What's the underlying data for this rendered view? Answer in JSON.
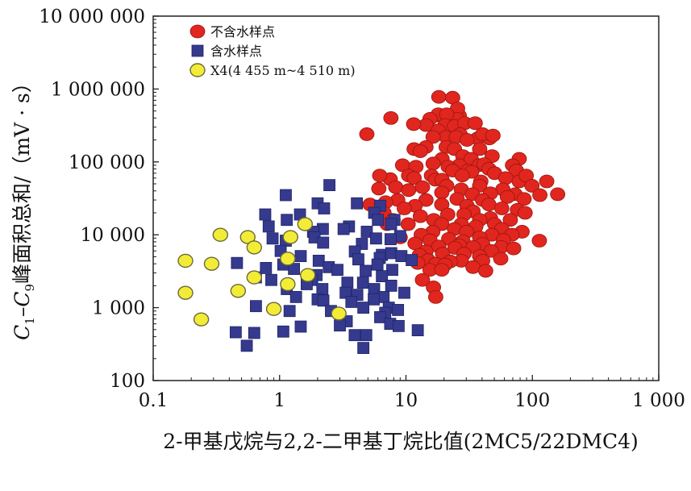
{
  "chart_data": {
    "type": "scatter",
    "x_scale": "log",
    "y_scale": "log",
    "xlim": [
      0.1,
      1000
    ],
    "ylim": [
      100,
      10000000
    ],
    "x_ticks": [
      "0.1",
      "1",
      "10",
      "100",
      "1 000"
    ],
    "y_ticks": [
      "10 000 000",
      "1 000 000",
      "100 000",
      "10 000",
      "1 000",
      "100"
    ],
    "xlabel": "2-甲基戊烷与2,2-二甲基丁烷比值(2MC5/22DMC4)",
    "ylabel_parts": {
      "c1": "C",
      "sub1": "1",
      "dash": "–C",
      "sub9": "9",
      "rest": "峰面积总和/（mV · s）"
    },
    "grid": false,
    "legend_position": "top-left",
    "legend": [
      {
        "label": "不含水样点",
        "marker": "circle",
        "color": "#e0261e"
      },
      {
        "label": "含水样点",
        "marker": "square",
        "color": "#353a8e"
      },
      {
        "label": "X4(4 455 m~4 510 m)",
        "marker": "circle",
        "color": "#f2ec37"
      }
    ],
    "series": [
      {
        "name": "不含水样点",
        "marker": "circle",
        "color": "#e0261e",
        "points": [
          [
            18.2,
            780000
          ],
          [
            18.4,
            430000
          ],
          [
            23.4,
            760000
          ],
          [
            7.6,
            400000
          ],
          [
            26.4,
            430000
          ],
          [
            25.6,
            540000
          ],
          [
            18.0,
            450000
          ],
          [
            15.5,
            390000
          ],
          [
            21.8,
            390000
          ],
          [
            22.4,
            390000
          ],
          [
            25.2,
            390000
          ],
          [
            21.0,
            450000
          ],
          [
            20.4,
            320000
          ],
          [
            24.2,
            310000
          ],
          [
            29.2,
            340000
          ],
          [
            35.3,
            340000
          ],
          [
            14.4,
            320000
          ],
          [
            11.5,
            330000
          ],
          [
            18.0,
            270000
          ],
          [
            20.8,
            220000
          ],
          [
            26.8,
            240000
          ],
          [
            36.8,
            210000
          ],
          [
            45.7,
            210000
          ],
          [
            25.0,
            220000
          ],
          [
            16.4,
            220000
          ],
          [
            40.4,
            240000
          ],
          [
            48.8,
            230000
          ],
          [
            30.4,
            200000
          ],
          [
            14.4,
            160000
          ],
          [
            4.9,
            240000
          ],
          [
            20.8,
            160000
          ],
          [
            24.2,
            150000
          ],
          [
            38.3,
            150000
          ],
          [
            11.6,
            150000
          ],
          [
            13.0,
            140000
          ],
          [
            19.3,
            110000
          ],
          [
            28.2,
            120000
          ],
          [
            32.8,
            110000
          ],
          [
            48.0,
            120000
          ],
          [
            78.7,
            110000
          ],
          [
            26.4,
            90000
          ],
          [
            16.4,
            95000
          ],
          [
            69.7,
            90000
          ],
          [
            37.9,
            90000
          ],
          [
            9.4,
            90000
          ],
          [
            21.6,
            86000
          ],
          [
            12.0,
            86000
          ],
          [
            41.5,
            93000
          ],
          [
            23.4,
            76000
          ],
          [
            31.0,
            76000
          ],
          [
            45.3,
            80000
          ],
          [
            74.8,
            76000
          ],
          [
            33.1,
            73000
          ],
          [
            50.3,
            70000
          ],
          [
            27.9,
            65000
          ],
          [
            15.9,
            65000
          ],
          [
            10.5,
            65000
          ],
          [
            11.6,
            60000
          ],
          [
            7.5,
            58000
          ],
          [
            6.2,
            65000
          ],
          [
            17.1,
            57000
          ],
          [
            19.3,
            57000
          ],
          [
            39.1,
            54000
          ],
          [
            61.6,
            60000
          ],
          [
            78.7,
            54000
          ],
          [
            89.4,
            65000
          ],
          [
            129.9,
            54000
          ],
          [
            99.2,
            47000
          ],
          [
            38.3,
            47000
          ],
          [
            21.0,
            47000
          ],
          [
            8.3,
            45000
          ],
          [
            13.5,
            45000
          ],
          [
            6.1,
            43000
          ],
          [
            27.4,
            42000
          ],
          [
            58.4,
            42000
          ],
          [
            10.5,
            41000
          ],
          [
            19.2,
            38000
          ],
          [
            158.6,
            36000
          ],
          [
            33.5,
            36000
          ],
          [
            46.6,
            37000
          ],
          [
            114.7,
            35000
          ],
          [
            73.1,
            36000
          ],
          [
            63.5,
            33000
          ],
          [
            25.4,
            31000
          ],
          [
            86.0,
            31000
          ],
          [
            8.6,
            30000
          ],
          [
            14.4,
            30000
          ],
          [
            40.4,
            30000
          ],
          [
            6.9,
            28000
          ],
          [
            30.4,
            25000
          ],
          [
            5.2,
            26000
          ],
          [
            19.2,
            26000
          ],
          [
            11.8,
            25000
          ],
          [
            45.3,
            26000
          ],
          [
            9.7,
            23000
          ],
          [
            57.3,
            23000
          ],
          [
            76.2,
            22000
          ],
          [
            33.9,
            21000
          ],
          [
            87.6,
            20000
          ],
          [
            28.8,
            19000
          ],
          [
            6.7,
            20000
          ],
          [
            21.4,
            19000
          ],
          [
            13.0,
            18000
          ],
          [
            46.6,
            17000
          ],
          [
            16.6,
            16000
          ],
          [
            7.9,
            16000
          ],
          [
            66.9,
            16000
          ],
          [
            38.3,
            16000
          ],
          [
            27.4,
            14000
          ],
          [
            19.2,
            14000
          ],
          [
            50.3,
            14000
          ],
          [
            10.4,
            14000
          ],
          [
            7.1,
            14000
          ],
          [
            35.7,
            13000
          ],
          [
            57.3,
            12000
          ],
          [
            24.2,
            12000
          ],
          [
            82.9,
            11000
          ],
          [
            16.3,
            11000
          ],
          [
            47.8,
            10000
          ],
          [
            13.2,
            10000
          ],
          [
            30.2,
            11000
          ],
          [
            69.0,
            10000
          ],
          [
            9.0,
            9200
          ],
          [
            38.3,
            9200
          ],
          [
            21.8,
            8800
          ],
          [
            59.0,
            8500
          ],
          [
            15.5,
            8400
          ],
          [
            28.2,
            8200
          ],
          [
            113.6,
            8300
          ],
          [
            11.8,
            7600
          ],
          [
            40.4,
            7500
          ],
          [
            26.4,
            7200
          ],
          [
            56.8,
            6800
          ],
          [
            18.2,
            6900
          ],
          [
            71.1,
            6500
          ],
          [
            34.0,
            6800
          ],
          [
            24.4,
            6600
          ],
          [
            47.4,
            6000
          ],
          [
            14.4,
            5900
          ],
          [
            28.8,
            5500
          ],
          [
            19.5,
            5500
          ],
          [
            12.8,
            5300
          ],
          [
            38.3,
            5100
          ],
          [
            56.2,
            4700
          ],
          [
            27.4,
            4400
          ],
          [
            40.4,
            4400
          ],
          [
            15.0,
            4500
          ],
          [
            22.4,
            4300
          ],
          [
            17.2,
            4000
          ],
          [
            12.4,
            4100
          ],
          [
            33.9,
            3600
          ],
          [
            20.4,
            3900
          ],
          [
            15.5,
            3300
          ],
          [
            19.2,
            3300
          ],
          [
            42.7,
            3200
          ],
          [
            13.5,
            2400
          ],
          [
            16.5,
            1900
          ],
          [
            17.2,
            1400
          ]
        ]
      },
      {
        "name": "含水样点",
        "marker": "square",
        "color": "#353a8e",
        "points": [
          [
            2.48,
            48000
          ],
          [
            1.12,
            35000
          ],
          [
            2.0,
            27000
          ],
          [
            4.09,
            27000
          ],
          [
            6.25,
            25000
          ],
          [
            0.77,
            19000
          ],
          [
            1.45,
            19000
          ],
          [
            2.25,
            23000
          ],
          [
            5.6,
            20000
          ],
          [
            1.14,
            16000
          ],
          [
            2.2,
            12000
          ],
          [
            6.0,
            16000
          ],
          [
            8.1,
            16000
          ],
          [
            0.82,
            13000
          ],
          [
            3.54,
            13000
          ],
          [
            1.84,
            11000
          ],
          [
            4.9,
            11000
          ],
          [
            7.62,
            14000
          ],
          [
            0.88,
            8900
          ],
          [
            1.12,
            8300
          ],
          [
            3.21,
            12000
          ],
          [
            9.0,
            9600
          ],
          [
            1.89,
            9200
          ],
          [
            5.8,
            8900
          ],
          [
            7.55,
            8700
          ],
          [
            2.21,
            7800
          ],
          [
            4.48,
            7500
          ],
          [
            6.45,
            5300
          ],
          [
            7.65,
            5600
          ],
          [
            1.02,
            6000
          ],
          [
            3.94,
            5900
          ],
          [
            1.47,
            5100
          ],
          [
            6.2,
            4800
          ],
          [
            9.2,
            5100
          ],
          [
            2.04,
            4400
          ],
          [
            4.2,
            4600
          ],
          [
            0.46,
            4100
          ],
          [
            1.07,
            3900
          ],
          [
            2.45,
            3600
          ],
          [
            5.95,
            3900
          ],
          [
            11.1,
            4500
          ],
          [
            0.78,
            3500
          ],
          [
            1.3,
            3400
          ],
          [
            2.87,
            3300
          ],
          [
            4.8,
            3200
          ],
          [
            7.79,
            3300
          ],
          [
            1.96,
            2800
          ],
          [
            0.65,
            2600
          ],
          [
            1.81,
            2400
          ],
          [
            6.45,
            2700
          ],
          [
            0.86,
            2400
          ],
          [
            3.44,
            2200
          ],
          [
            1.64,
            2100
          ],
          [
            4.57,
            2200
          ],
          [
            7.64,
            2000
          ],
          [
            1.14,
            1800
          ],
          [
            2.18,
            1800
          ],
          [
            5.6,
            1800
          ],
          [
            1.35,
            1400
          ],
          [
            3.33,
            1600
          ],
          [
            9.7,
            1600
          ],
          [
            4.12,
            1500
          ],
          [
            2.0,
            1300
          ],
          [
            6.65,
            1400
          ],
          [
            0.65,
            1050
          ],
          [
            2.22,
            1250
          ],
          [
            3.7,
            1200
          ],
          [
            5.56,
            1300
          ],
          [
            7.31,
            1000
          ],
          [
            1.2,
            900
          ],
          [
            2.55,
            900
          ],
          [
            4.6,
            1000
          ],
          [
            6.85,
            850
          ],
          [
            8.65,
            930
          ],
          [
            6.25,
            740
          ],
          [
            3.4,
            650
          ],
          [
            7.5,
            600
          ],
          [
            8.75,
            560
          ],
          [
            1.47,
            550
          ],
          [
            3.0,
            570
          ],
          [
            0.45,
            460
          ],
          [
            0.63,
            450
          ],
          [
            1.07,
            470
          ],
          [
            12.4,
            490
          ],
          [
            3.93,
            420
          ],
          [
            4.85,
            420
          ],
          [
            0.55,
            300
          ],
          [
            4.6,
            280
          ]
        ]
      },
      {
        "name": "X4(4 455 m~4 510 m)",
        "marker": "circle",
        "color": "#f2ec37",
        "points": [
          [
            0.34,
            10000
          ],
          [
            0.56,
            9300
          ],
          [
            1.22,
            9300
          ],
          [
            1.59,
            14000
          ],
          [
            0.63,
            6700
          ],
          [
            0.18,
            4400
          ],
          [
            0.29,
            4000
          ],
          [
            1.16,
            4700
          ],
          [
            0.63,
            2600
          ],
          [
            1.67,
            2800
          ],
          [
            1.16,
            2100
          ],
          [
            0.47,
            1700
          ],
          [
            0.18,
            1600
          ],
          [
            0.9,
            960
          ],
          [
            2.94,
            830
          ],
          [
            0.24,
            690
          ]
        ]
      }
    ]
  }
}
